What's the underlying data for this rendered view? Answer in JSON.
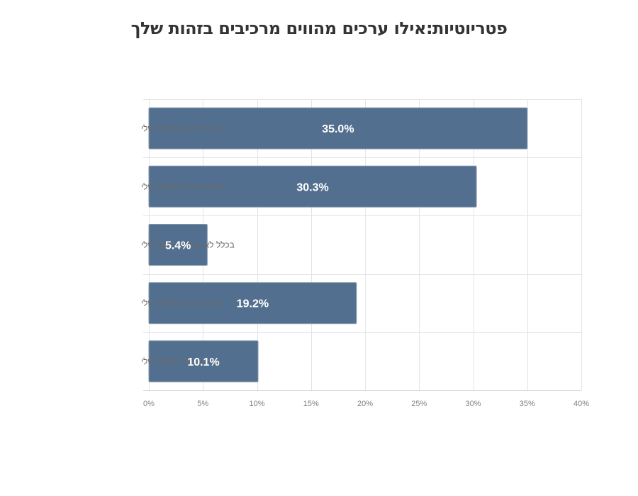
{
  "chart_data": {
    "type": "bar",
    "orientation": "horizontal",
    "title": "פטריוטיות:אילו ערכים מהווים מרכיבים בזהות שלך",
    "categories": [
      "מרכיב חשוב בזהות שלי",
      "מרכיב מרכזי בזהות שלי",
      "בכלל לא מרכיב בזהות שלי",
      "מרכיב בינוני בזהות שלי",
      "מרכיב שולי בזהות שלי"
    ],
    "values": [
      35.0,
      30.3,
      5.4,
      19.2,
      10.1
    ],
    "data_labels": [
      "35.0%",
      "30.3%",
      "5.4%",
      "19.2%",
      "10.1%"
    ],
    "xlim": [
      0,
      40
    ],
    "xticks": [
      0,
      5,
      10,
      15,
      20,
      25,
      30,
      35,
      40
    ],
    "xtick_labels": [
      "0%",
      "5%",
      "10%",
      "15%",
      "20%",
      "25%",
      "30%",
      "35%",
      "40%"
    ],
    "xlabel": "",
    "ylabel": "",
    "grid": true,
    "legend": "none",
    "colors": {
      "bar": "#536f8f",
      "grid": "#e4e4e4",
      "label": "#ffffff"
    }
  }
}
